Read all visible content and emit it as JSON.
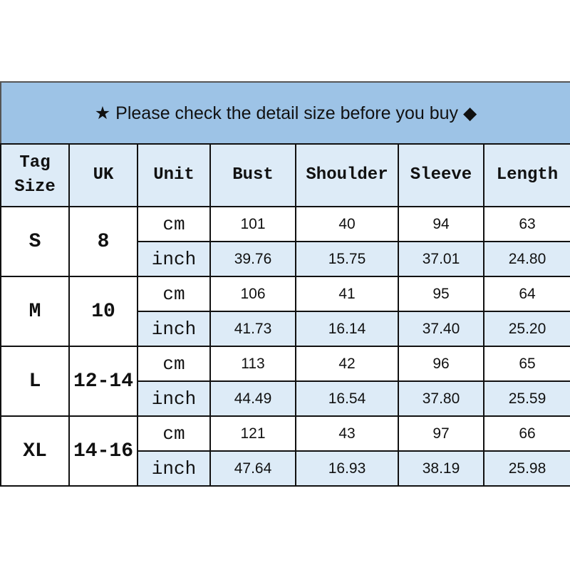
{
  "title": {
    "star": "★",
    "text": "Please check the detail size before you buy",
    "diamond": "◆"
  },
  "headers": [
    "Tag Size",
    "UK",
    "Unit",
    "Bust",
    "Shoulder",
    "Sleeve",
    "Length"
  ],
  "colors": {
    "title_bg": "#9DC3E6",
    "header_bg": "#DDEBF7",
    "inch_row_bg": "#DDEBF7"
  },
  "rows": [
    {
      "tag": "S",
      "uk": "8",
      "cm": {
        "unit": "cm",
        "values": [
          "101",
          "40",
          "94",
          "63"
        ]
      },
      "inch": {
        "unit": "inch",
        "values": [
          "39.76",
          "15.75",
          "37.01",
          "24.80"
        ]
      }
    },
    {
      "tag": "M",
      "uk": "10",
      "cm": {
        "unit": "cm",
        "values": [
          "106",
          "41",
          "95",
          "64"
        ]
      },
      "inch": {
        "unit": "inch",
        "values": [
          "41.73",
          "16.14",
          "37.40",
          "25.20"
        ]
      }
    },
    {
      "tag": "L",
      "uk": "12-14",
      "cm": {
        "unit": "cm",
        "values": [
          "113",
          "42",
          "96",
          "65"
        ]
      },
      "inch": {
        "unit": "inch",
        "values": [
          "44.49",
          "16.54",
          "37.80",
          "25.59"
        ]
      }
    },
    {
      "tag": "XL",
      "uk": "14-16",
      "cm": {
        "unit": "cm",
        "values": [
          "121",
          "43",
          "97",
          "66"
        ]
      },
      "inch": {
        "unit": "inch",
        "values": [
          "47.64",
          "16.93",
          "38.19",
          "25.98"
        ]
      }
    }
  ]
}
